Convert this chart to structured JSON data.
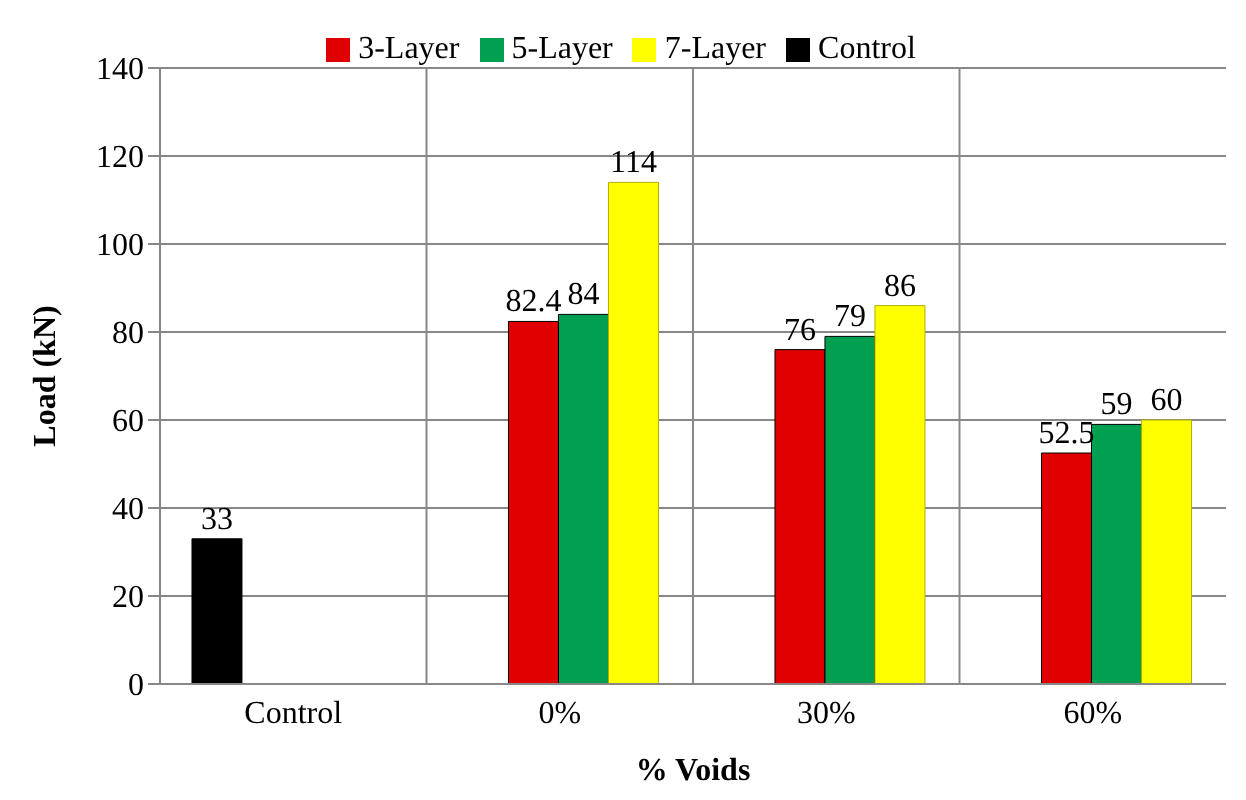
{
  "chart_data": {
    "type": "bar",
    "xlabel": "% Voids",
    "ylabel": "Load (kN)",
    "categories": [
      "Control",
      "0%",
      "30%",
      "60%"
    ],
    "series": [
      {
        "name": "Control",
        "color": "#000000",
        "values": [
          33,
          null,
          null,
          null
        ]
      },
      {
        "name": "3-Layer",
        "color": "#e00000",
        "values": [
          null,
          82.4,
          76,
          52.5
        ]
      },
      {
        "name": "5-Layer",
        "color": "#00a050",
        "values": [
          null,
          84,
          79,
          59
        ]
      },
      {
        "name": "7-Layer",
        "color": "#ffff00",
        "values": [
          null,
          114,
          86,
          60
        ]
      }
    ],
    "ylim": [
      0,
      140
    ],
    "yticks": [
      0,
      20,
      40,
      60,
      80,
      100,
      120,
      140
    ],
    "grid": true,
    "legend": "top",
    "data_labels": true
  }
}
